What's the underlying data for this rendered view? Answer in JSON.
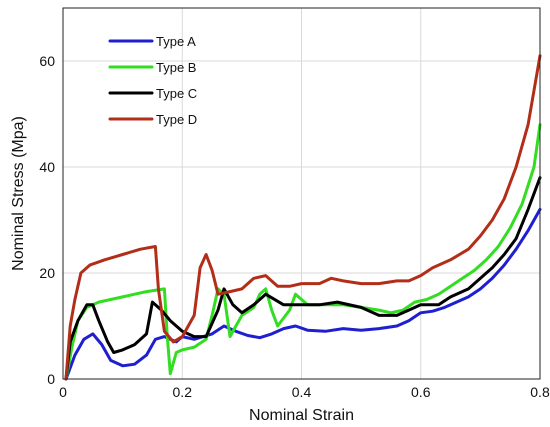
{
  "chart_data": {
    "type": "line",
    "title": "",
    "xlabel": "Nominal Strain",
    "ylabel": "Nominal Stress (Mpa)",
    "xlim": [
      0,
      0.8
    ],
    "ylim": [
      0,
      70
    ],
    "x_ticks": [
      0,
      0.2,
      0.4,
      0.6,
      0.8
    ],
    "x_tick_labels": [
      "0",
      "0.2",
      "0.4",
      "0.6",
      "0.8"
    ],
    "y_ticks": [
      0,
      20,
      40,
      60
    ],
    "y_tick_labels": [
      "0",
      "20",
      "40",
      "60"
    ],
    "grid": true,
    "legend_position": "top-left",
    "series": [
      {
        "name": "Type A",
        "color": "#1f1fcf",
        "points": [
          [
            0.005,
            0
          ],
          [
            0.01,
            1.5
          ],
          [
            0.02,
            4.5
          ],
          [
            0.035,
            7.5
          ],
          [
            0.05,
            8.5
          ],
          [
            0.065,
            6.5
          ],
          [
            0.08,
            3.5
          ],
          [
            0.1,
            2.5
          ],
          [
            0.12,
            2.8
          ],
          [
            0.14,
            4.5
          ],
          [
            0.155,
            7.5
          ],
          [
            0.17,
            8
          ],
          [
            0.19,
            7
          ],
          [
            0.2,
            8
          ],
          [
            0.22,
            7.5
          ],
          [
            0.25,
            8.5
          ],
          [
            0.27,
            10
          ],
          [
            0.29,
            9
          ],
          [
            0.31,
            8.2
          ],
          [
            0.33,
            7.8
          ],
          [
            0.35,
            8.5
          ],
          [
            0.37,
            9.5
          ],
          [
            0.39,
            10
          ],
          [
            0.41,
            9.2
          ],
          [
            0.44,
            9
          ],
          [
            0.47,
            9.5
          ],
          [
            0.5,
            9.2
          ],
          [
            0.53,
            9.5
          ],
          [
            0.56,
            10
          ],
          [
            0.58,
            11
          ],
          [
            0.6,
            12.5
          ],
          [
            0.62,
            12.8
          ],
          [
            0.64,
            13.5
          ],
          [
            0.66,
            14.5
          ],
          [
            0.68,
            15.5
          ],
          [
            0.7,
            17
          ],
          [
            0.72,
            19
          ],
          [
            0.74,
            21.5
          ],
          [
            0.76,
            24.5
          ],
          [
            0.78,
            28
          ],
          [
            0.8,
            32
          ]
        ]
      },
      {
        "name": "Type B",
        "color": "#33dd22",
        "points": [
          [
            0.005,
            0
          ],
          [
            0.015,
            6
          ],
          [
            0.025,
            11
          ],
          [
            0.04,
            13.5
          ],
          [
            0.06,
            14.5
          ],
          [
            0.08,
            15
          ],
          [
            0.1,
            15.5
          ],
          [
            0.12,
            16
          ],
          [
            0.14,
            16.5
          ],
          [
            0.17,
            17
          ],
          [
            0.175,
            8
          ],
          [
            0.18,
            1
          ],
          [
            0.19,
            5
          ],
          [
            0.2,
            5.5
          ],
          [
            0.22,
            6
          ],
          [
            0.24,
            7.5
          ],
          [
            0.25,
            12
          ],
          [
            0.26,
            17
          ],
          [
            0.27,
            16
          ],
          [
            0.28,
            8
          ],
          [
            0.29,
            10
          ],
          [
            0.3,
            12
          ],
          [
            0.32,
            13.5
          ],
          [
            0.33,
            16
          ],
          [
            0.34,
            17
          ],
          [
            0.35,
            13
          ],
          [
            0.36,
            10
          ],
          [
            0.38,
            13
          ],
          [
            0.39,
            16
          ],
          [
            0.41,
            14
          ],
          [
            0.44,
            14
          ],
          [
            0.47,
            14
          ],
          [
            0.5,
            13.5
          ],
          [
            0.53,
            13
          ],
          [
            0.55,
            12.5
          ],
          [
            0.57,
            13
          ],
          [
            0.59,
            14.5
          ],
          [
            0.61,
            15
          ],
          [
            0.63,
            16
          ],
          [
            0.65,
            17.5
          ],
          [
            0.67,
            19
          ],
          [
            0.69,
            20.5
          ],
          [
            0.71,
            22.5
          ],
          [
            0.73,
            25
          ],
          [
            0.75,
            28.5
          ],
          [
            0.77,
            33
          ],
          [
            0.79,
            40
          ],
          [
            0.8,
            48
          ]
        ]
      },
      {
        "name": "Type C",
        "color": "#000000",
        "points": [
          [
            0.005,
            0
          ],
          [
            0.012,
            7
          ],
          [
            0.025,
            11
          ],
          [
            0.04,
            14
          ],
          [
            0.05,
            14
          ],
          [
            0.06,
            11
          ],
          [
            0.075,
            7
          ],
          [
            0.085,
            5
          ],
          [
            0.1,
            5.5
          ],
          [
            0.12,
            6.5
          ],
          [
            0.14,
            8.5
          ],
          [
            0.15,
            14.5
          ],
          [
            0.165,
            13
          ],
          [
            0.18,
            11
          ],
          [
            0.2,
            9
          ],
          [
            0.22,
            8
          ],
          [
            0.24,
            8
          ],
          [
            0.26,
            13
          ],
          [
            0.27,
            17
          ],
          [
            0.285,
            14
          ],
          [
            0.3,
            12.5
          ],
          [
            0.32,
            14
          ],
          [
            0.34,
            16
          ],
          [
            0.37,
            14
          ],
          [
            0.4,
            14
          ],
          [
            0.43,
            14
          ],
          [
            0.46,
            14.5
          ],
          [
            0.5,
            13.5
          ],
          [
            0.53,
            12
          ],
          [
            0.56,
            12
          ],
          [
            0.58,
            13
          ],
          [
            0.6,
            14
          ],
          [
            0.63,
            14
          ],
          [
            0.65,
            15.5
          ],
          [
            0.68,
            17
          ],
          [
            0.7,
            19
          ],
          [
            0.72,
            21
          ],
          [
            0.74,
            23.5
          ],
          [
            0.76,
            26.5
          ],
          [
            0.78,
            32
          ],
          [
            0.8,
            38
          ]
        ]
      },
      {
        "name": "Type D",
        "color": "#b22e18",
        "points": [
          [
            0.005,
            0
          ],
          [
            0.012,
            10
          ],
          [
            0.02,
            15
          ],
          [
            0.03,
            20
          ],
          [
            0.045,
            21.5
          ],
          [
            0.07,
            22.5
          ],
          [
            0.1,
            23.5
          ],
          [
            0.13,
            24.5
          ],
          [
            0.155,
            25
          ],
          [
            0.16,
            17
          ],
          [
            0.17,
            9
          ],
          [
            0.185,
            7
          ],
          [
            0.2,
            8
          ],
          [
            0.22,
            12
          ],
          [
            0.23,
            21
          ],
          [
            0.24,
            23.5
          ],
          [
            0.25,
            20.5
          ],
          [
            0.26,
            16
          ],
          [
            0.28,
            16.5
          ],
          [
            0.3,
            17
          ],
          [
            0.32,
            19
          ],
          [
            0.34,
            19.5
          ],
          [
            0.36,
            17.5
          ],
          [
            0.38,
            17.5
          ],
          [
            0.4,
            18
          ],
          [
            0.43,
            18
          ],
          [
            0.45,
            19
          ],
          [
            0.47,
            18.5
          ],
          [
            0.5,
            18
          ],
          [
            0.53,
            18
          ],
          [
            0.56,
            18.5
          ],
          [
            0.58,
            18.5
          ],
          [
            0.6,
            19.5
          ],
          [
            0.62,
            21
          ],
          [
            0.65,
            22.5
          ],
          [
            0.68,
            24.5
          ],
          [
            0.7,
            27
          ],
          [
            0.72,
            30
          ],
          [
            0.74,
            34
          ],
          [
            0.76,
            40
          ],
          [
            0.78,
            48
          ],
          [
            0.8,
            61
          ]
        ]
      }
    ]
  }
}
